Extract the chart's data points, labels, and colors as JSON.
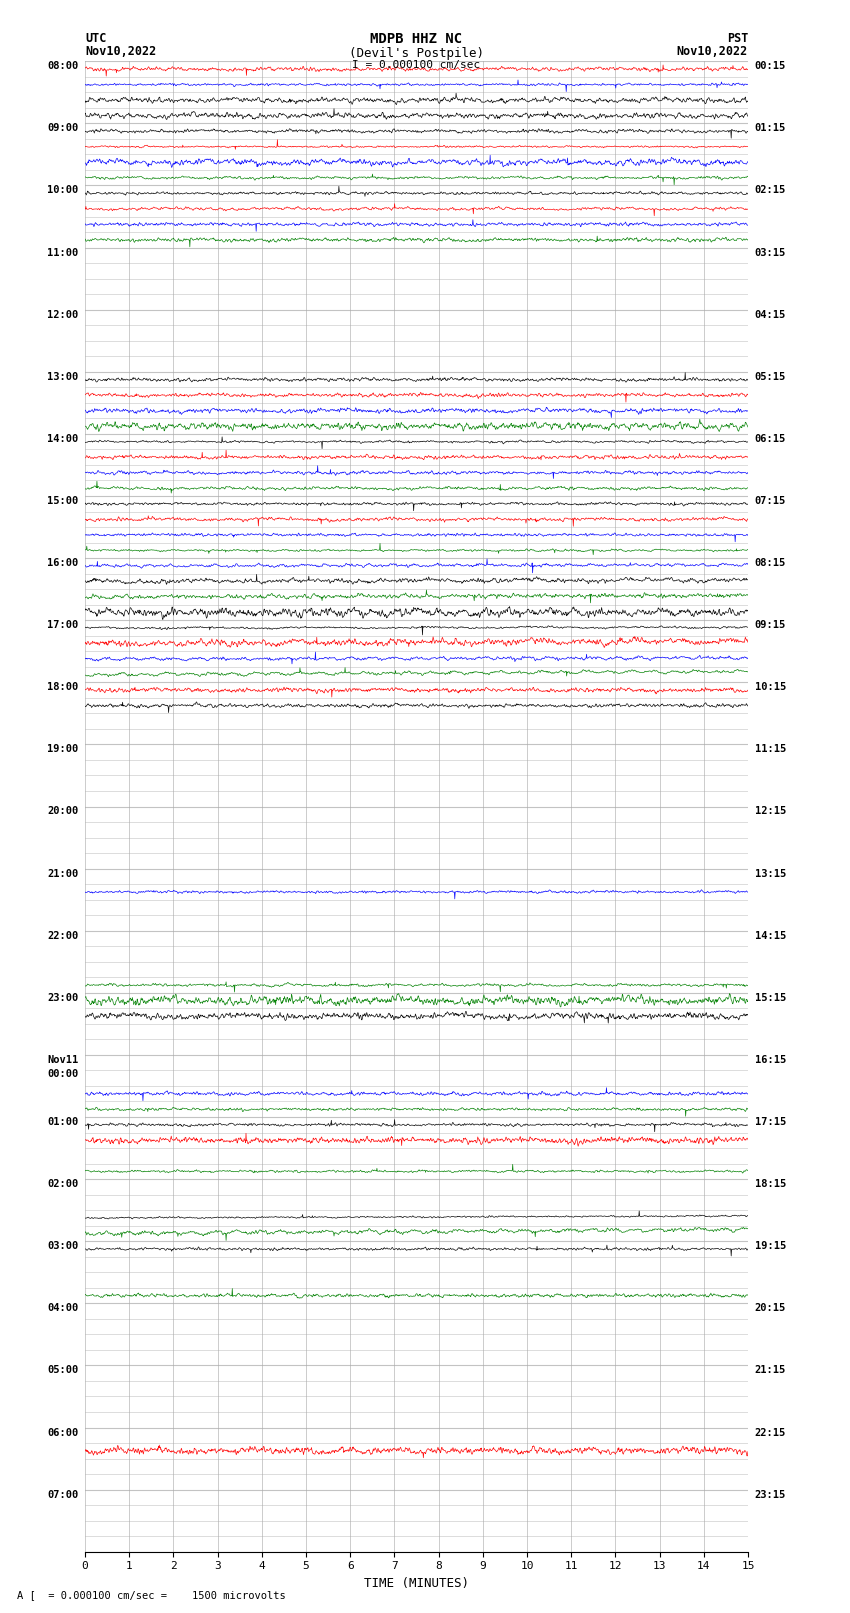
{
  "title_line1": "MDPB HHZ NC",
  "title_line2": "(Devil's Postpile)",
  "scale_label": "I = 0.000100 cm/sec",
  "left_header_line1": "UTC",
  "left_header_line2": "Nov10,2022",
  "right_header_line1": "PST",
  "right_header_line2": "Nov10,2022",
  "bottom_label": "TIME (MINUTES)",
  "bottom_note": "A [  = 0.000100 cm/sec =    1500 microvolts",
  "bg_color": "#ffffff",
  "grid_color": "#aaaaaa",
  "trace_colors": [
    "red",
    "blue",
    "black",
    "green",
    "black",
    "red",
    "blue",
    "green",
    "black",
    "red",
    "blue",
    "green"
  ],
  "utc_times": [
    "08:00",
    "09:00",
    "10:00",
    "11:00",
    "12:00",
    "13:00",
    "14:00",
    "15:00",
    "16:00",
    "17:00",
    "18:00",
    "19:00",
    "20:00",
    "21:00",
    "22:00",
    "23:00",
    "Nov11\n00:00",
    "01:00",
    "02:00",
    "03:00",
    "04:00",
    "05:00",
    "06:00",
    "07:00"
  ],
  "pst_times": [
    "00:15",
    "01:15",
    "02:15",
    "03:15",
    "04:15",
    "05:15",
    "06:15",
    "07:15",
    "08:15",
    "09:15",
    "10:15",
    "11:15",
    "12:15",
    "13:15",
    "14:15",
    "15:15",
    "16:15",
    "17:15",
    "18:15",
    "19:15",
    "20:15",
    "21:15",
    "22:15",
    "23:15"
  ]
}
